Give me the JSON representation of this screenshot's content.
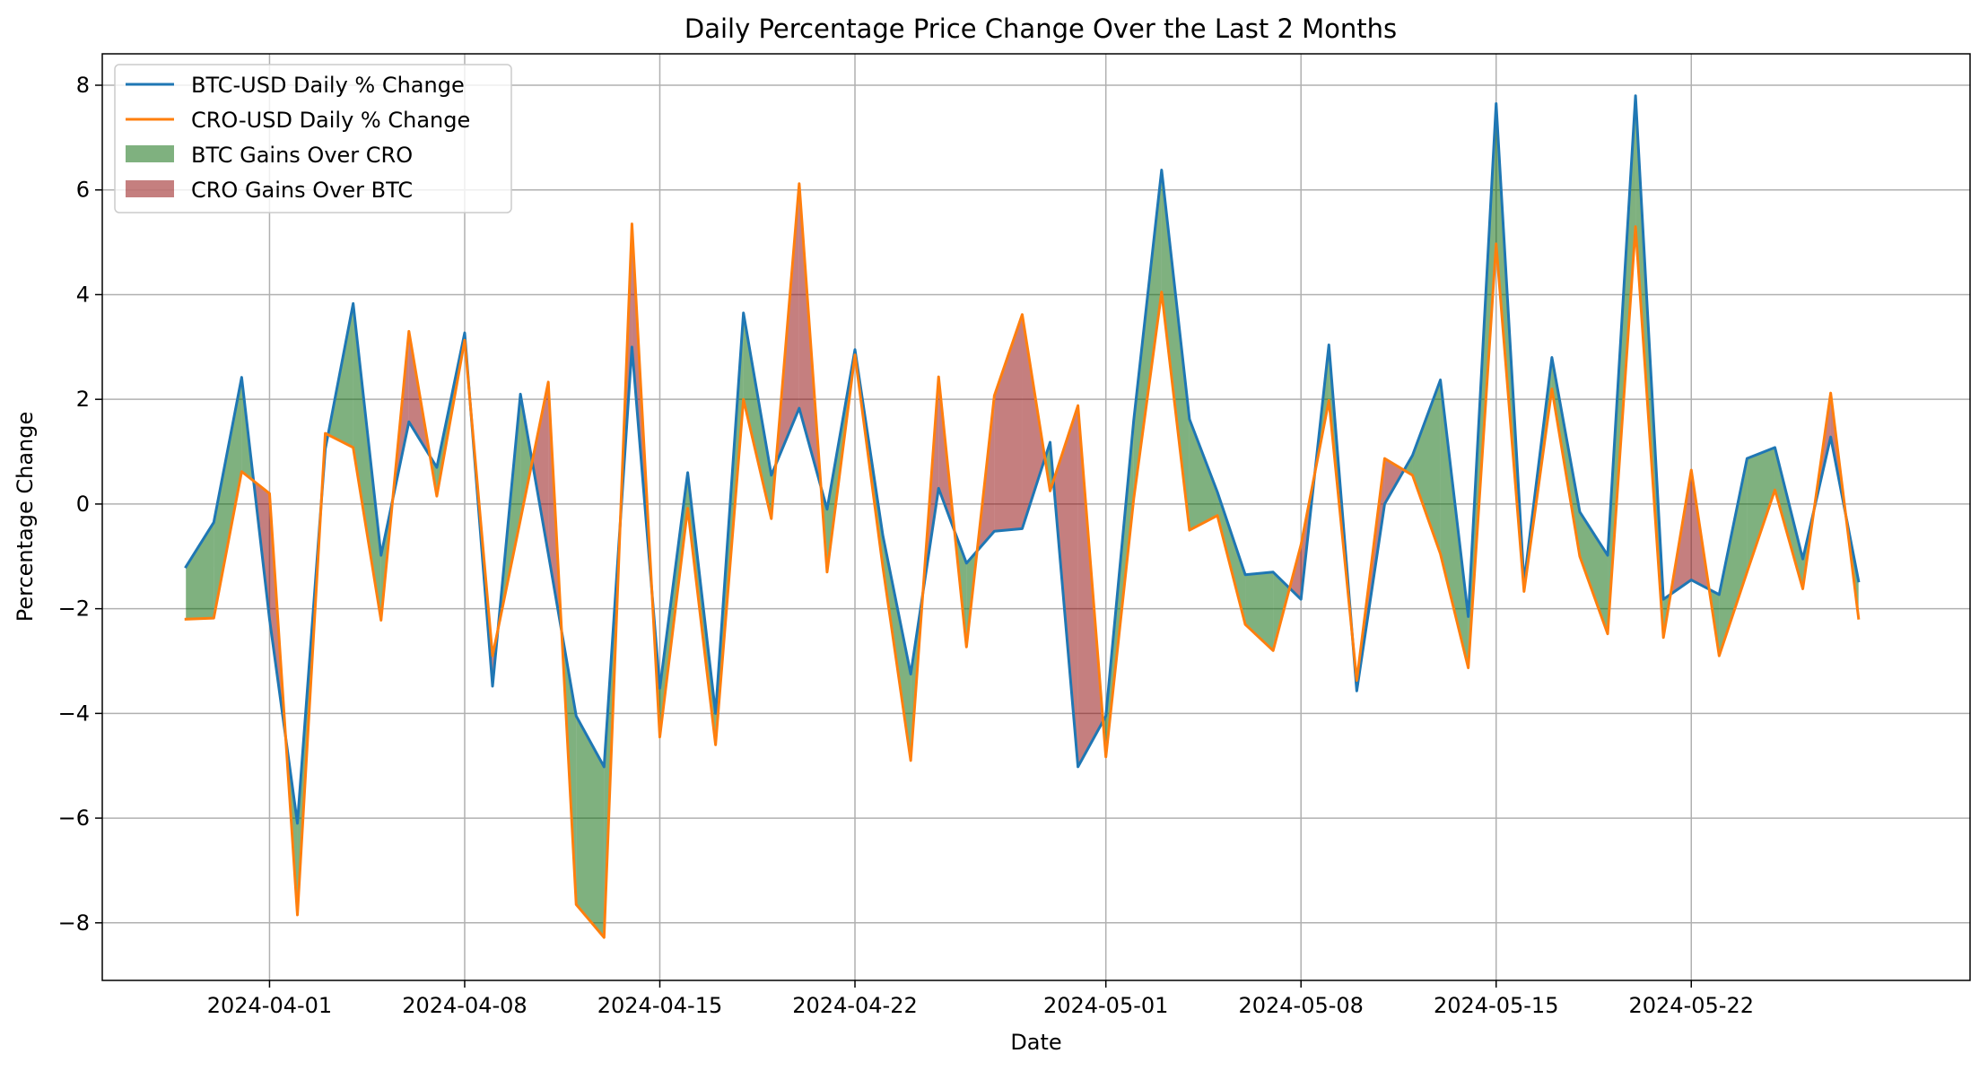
{
  "chart_data": {
    "type": "line",
    "title": "Daily Percentage Price Change Over the Last 2 Months",
    "xlabel": "Date",
    "ylabel": "Percentage Change",
    "x_start": "2024-03-29",
    "xlim": [
      "2024-03-26",
      "2024-06-01"
    ],
    "ylim": [
      -9.1,
      8.6
    ],
    "x_ticks": [
      "2024-04-01",
      "2024-04-08",
      "2024-04-15",
      "2024-04-22",
      "2024-05-01",
      "2024-05-08",
      "2024-05-15",
      "2024-05-22"
    ],
    "y_ticks": [
      -8,
      -6,
      -4,
      -2,
      0,
      2,
      4,
      6,
      8
    ],
    "y_tick_labels": [
      "−8",
      "−6",
      "−4",
      "−2",
      "0",
      "2",
      "4",
      "6",
      "8"
    ],
    "grid": true,
    "legend_position": "top-left",
    "series": [
      {
        "name": "BTC-USD Daily % Change",
        "color": "#1f77b4",
        "values": [
          -1.2,
          -0.35,
          2.42,
          -2.2,
          -6.1,
          1.05,
          3.83,
          -0.98,
          1.57,
          0.7,
          3.27,
          -3.48,
          2.1,
          -0.95,
          -4.05,
          -5.02,
          3.0,
          -3.52,
          0.6,
          -4.0,
          3.65,
          0.55,
          1.83,
          -0.1,
          2.95,
          -0.6,
          -3.25,
          0.3,
          -1.13,
          -0.52,
          -0.47,
          1.18,
          -5.02,
          -4.05,
          1.6,
          6.38,
          1.62,
          0.23,
          -1.35,
          -1.3,
          -1.82,
          3.04,
          -3.57,
          0.0,
          0.93,
          2.37,
          -2.15,
          7.65,
          -1.5,
          2.8,
          -0.15,
          -0.98,
          7.8,
          -1.82,
          -1.45,
          -1.73,
          0.87,
          1.08,
          -1.05,
          1.28,
          -1.47
        ]
      },
      {
        "name": "CRO-USD Daily % Change",
        "color": "#ff7f0e",
        "values": [
          -2.2,
          -2.18,
          0.62,
          0.2,
          -7.85,
          1.35,
          1.08,
          -2.22,
          3.3,
          0.15,
          3.13,
          -2.9,
          -0.3,
          2.33,
          -7.65,
          -8.28,
          5.35,
          -4.45,
          -0.08,
          -4.6,
          2.0,
          -0.28,
          6.12,
          -1.3,
          2.85,
          -1.2,
          -4.9,
          2.43,
          -2.73,
          2.07,
          3.62,
          0.25,
          1.88,
          -4.83,
          0.1,
          4.05,
          -0.5,
          -0.22,
          -2.3,
          -2.8,
          -0.78,
          1.98,
          -3.37,
          0.87,
          0.55,
          -0.95,
          -3.13,
          4.97,
          -1.67,
          2.2,
          -1.0,
          -2.48,
          5.3,
          -2.55,
          0.65,
          -2.9,
          -1.3,
          0.27,
          -1.62,
          2.12,
          -2.18
        ]
      }
    ],
    "fill_between": [
      {
        "name": "BTC Gains Over CRO",
        "color": "#006400",
        "opacity": 0.5,
        "condition": "BTC >= CRO"
      },
      {
        "name": "CRO Gains Over BTC",
        "color": "#8b0000",
        "opacity": 0.5,
        "condition": "CRO > BTC"
      }
    ]
  }
}
